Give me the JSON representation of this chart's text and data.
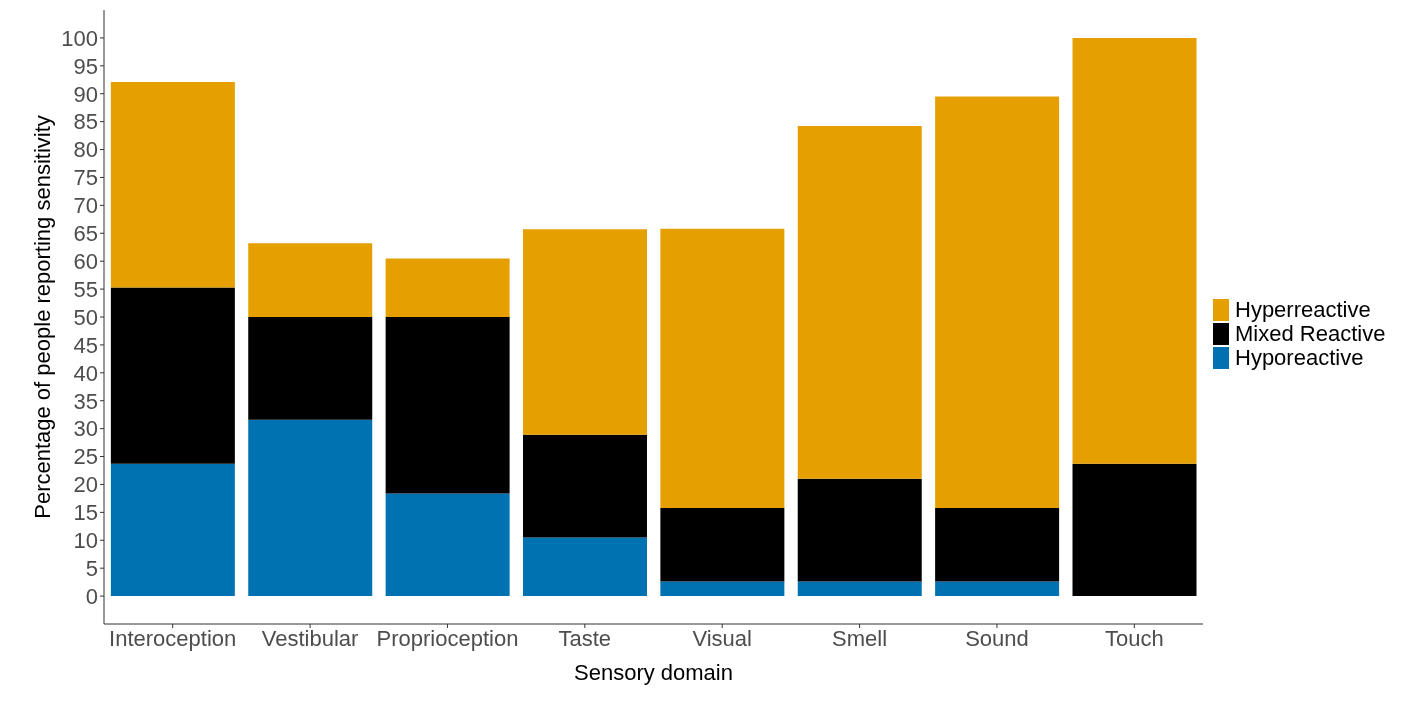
{
  "chart_data": {
    "type": "bar",
    "stacked": true,
    "xlabel": "Sensory domain",
    "ylabel": "Percentage of people reporting sensitivity",
    "categories": [
      "Interoception",
      "Vestibular",
      "Proprioception",
      "Taste",
      "Visual",
      "Smell",
      "Sound",
      "Touch"
    ],
    "series": [
      {
        "name": "Hyporeactive",
        "color": "#0072b2",
        "values": [
          23.7,
          31.6,
          18.4,
          10.5,
          2.6,
          2.6,
          2.6,
          0
        ]
      },
      {
        "name": "Mixed Reactive",
        "color": "#000000",
        "values": [
          31.6,
          18.4,
          31.6,
          18.4,
          13.2,
          18.4,
          13.2,
          23.7
        ]
      },
      {
        "name": "Hyperreactive",
        "color": "#e69f00",
        "values": [
          36.8,
          13.2,
          10.5,
          36.8,
          50.0,
          63.2,
          73.7,
          76.3
        ]
      }
    ],
    "ylim": [
      -5,
      105
    ],
    "yticks": [
      0,
      5,
      10,
      15,
      20,
      25,
      30,
      35,
      40,
      45,
      50,
      55,
      60,
      65,
      70,
      75,
      80,
      85,
      90,
      95,
      100
    ],
    "grid": false,
    "legend": "right"
  }
}
